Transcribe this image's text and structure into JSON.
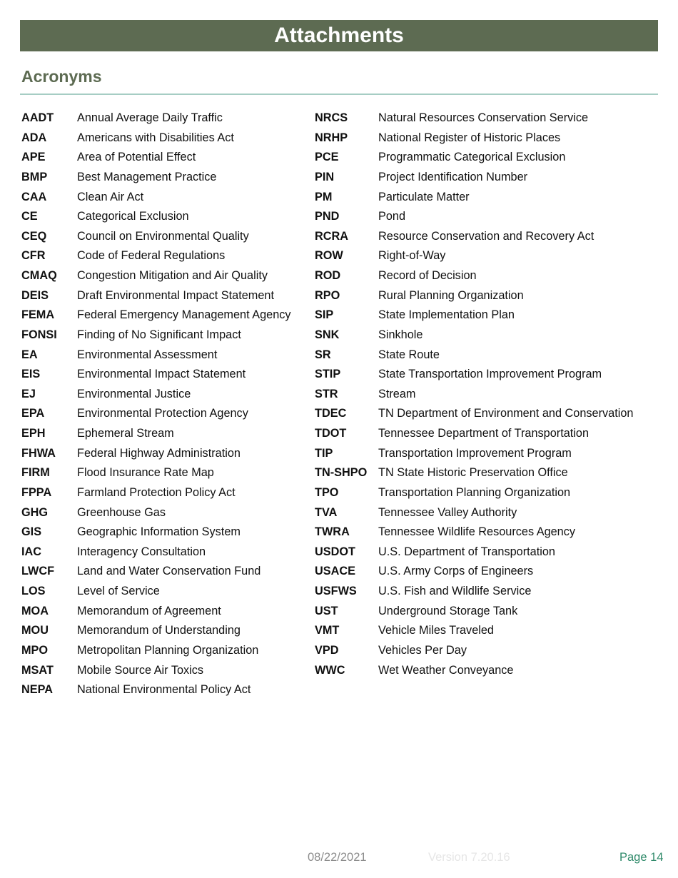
{
  "header": {
    "title": "Attachments"
  },
  "section": {
    "title": "Acronyms"
  },
  "left": [
    {
      "acr": "AADT",
      "def": "Annual Average Daily Traffic"
    },
    {
      "acr": "ADA",
      "def": "Americans with Disabilities Act"
    },
    {
      "acr": "APE",
      "def": "Area of Potential Effect"
    },
    {
      "acr": "BMP",
      "def": "Best Management Practice"
    },
    {
      "acr": "CAA",
      "def": "Clean Air Act"
    },
    {
      "acr": "CE",
      "def": "Categorical Exclusion"
    },
    {
      "acr": "CEQ",
      "def": "Council on Environmental Quality"
    },
    {
      "acr": "CFR",
      "def": "Code of Federal Regulations"
    },
    {
      "acr": "CMAQ",
      "def": "Congestion Mitigation and Air Quality"
    },
    {
      "acr": "DEIS",
      "def": "Draft Environmental Impact Statement"
    },
    {
      "acr": "FEMA",
      "def": "Federal Emergency Management Agency"
    },
    {
      "acr": "FONSI",
      "def": "Finding of No Significant Impact"
    },
    {
      "acr": "EA",
      "def": "Environmental Assessment"
    },
    {
      "acr": "EIS",
      "def": "Environmental Impact Statement"
    },
    {
      "acr": "EJ",
      "def": "Environmental Justice"
    },
    {
      "acr": "EPA",
      "def": "Environmental Protection Agency"
    },
    {
      "acr": "EPH",
      "def": "Ephemeral Stream"
    },
    {
      "acr": "FHWA",
      "def": "Federal Highway Administration"
    },
    {
      "acr": "FIRM",
      "def": "Flood Insurance Rate Map"
    },
    {
      "acr": "FPPA",
      "def": "Farmland Protection Policy Act"
    },
    {
      "acr": "GHG",
      "def": "Greenhouse Gas"
    },
    {
      "acr": "GIS",
      "def": "Geographic Information System"
    },
    {
      "acr": "IAC",
      "def": "Interagency Consultation"
    },
    {
      "acr": "LWCF",
      "def": "Land and Water Conservation Fund"
    },
    {
      "acr": "LOS",
      "def": "Level of Service"
    },
    {
      "acr": "MOA",
      "def": "Memorandum of Agreement"
    },
    {
      "acr": "MOU",
      "def": "Memorandum of Understanding"
    },
    {
      "acr": "MPO",
      "def": "Metropolitan Planning Organization"
    },
    {
      "acr": "MSAT",
      "def": "Mobile Source Air Toxics"
    },
    {
      "acr": "NEPA",
      "def": "National Environmental Policy Act"
    }
  ],
  "right": [
    {
      "acr": "NRCS",
      "def": "Natural Resources Conservation Service"
    },
    {
      "acr": "NRHP",
      "def": "National Register of Historic Places"
    },
    {
      "acr": "PCE",
      "def": "Programmatic Categorical Exclusion"
    },
    {
      "acr": "PIN",
      "def": "Project Identification Number"
    },
    {
      "acr": "PM",
      "def": "Particulate Matter"
    },
    {
      "acr": "PND",
      "def": "Pond"
    },
    {
      "acr": "RCRA",
      "def": "Resource Conservation and Recovery Act"
    },
    {
      "acr": "ROW",
      "def": "Right-of-Way"
    },
    {
      "acr": "ROD",
      "def": "Record of Decision"
    },
    {
      "acr": "RPO",
      "def": "Rural Planning Organization"
    },
    {
      "acr": "SIP",
      "def": "State Implementation Plan"
    },
    {
      "acr": "SNK",
      "def": "Sinkhole"
    },
    {
      "acr": "SR",
      "def": "State Route"
    },
    {
      "acr": "STIP",
      "def": "State Transportation Improvement Program"
    },
    {
      "acr": "STR",
      "def": "Stream"
    },
    {
      "acr": "TDEC",
      "def": "TN Department of Environment and Conservation"
    },
    {
      "acr": "TDOT",
      "def": "Tennessee Department of Transportation"
    },
    {
      "acr": "TIP",
      "def": "Transportation Improvement Program"
    },
    {
      "acr": "TN-SHPO",
      "def": "TN State Historic Preservation Office"
    },
    {
      "acr": "TPO",
      "def": "Transportation Planning Organization"
    },
    {
      "acr": "TVA",
      "def": "Tennessee Valley Authority"
    },
    {
      "acr": "TWRA",
      "def": "Tennessee Wildlife Resources Agency"
    },
    {
      "acr": "USDOT",
      "def": "U.S. Department of Transportation"
    },
    {
      "acr": "USACE",
      "def": "U.S. Army Corps of Engineers"
    },
    {
      "acr": "USFWS",
      "def": "U.S. Fish and Wildlife Service"
    },
    {
      "acr": "UST",
      "def": "Underground Storage Tank"
    },
    {
      "acr": "VMT",
      "def": "Vehicle Miles Traveled"
    },
    {
      "acr": "VPD",
      "def": "Vehicles Per Day"
    },
    {
      "acr": "WWC",
      "def": "Wet Weather Conveyance"
    }
  ],
  "footer": {
    "date": "08/22/2021",
    "version": "Version 7.20.16",
    "page": "Page 14"
  }
}
